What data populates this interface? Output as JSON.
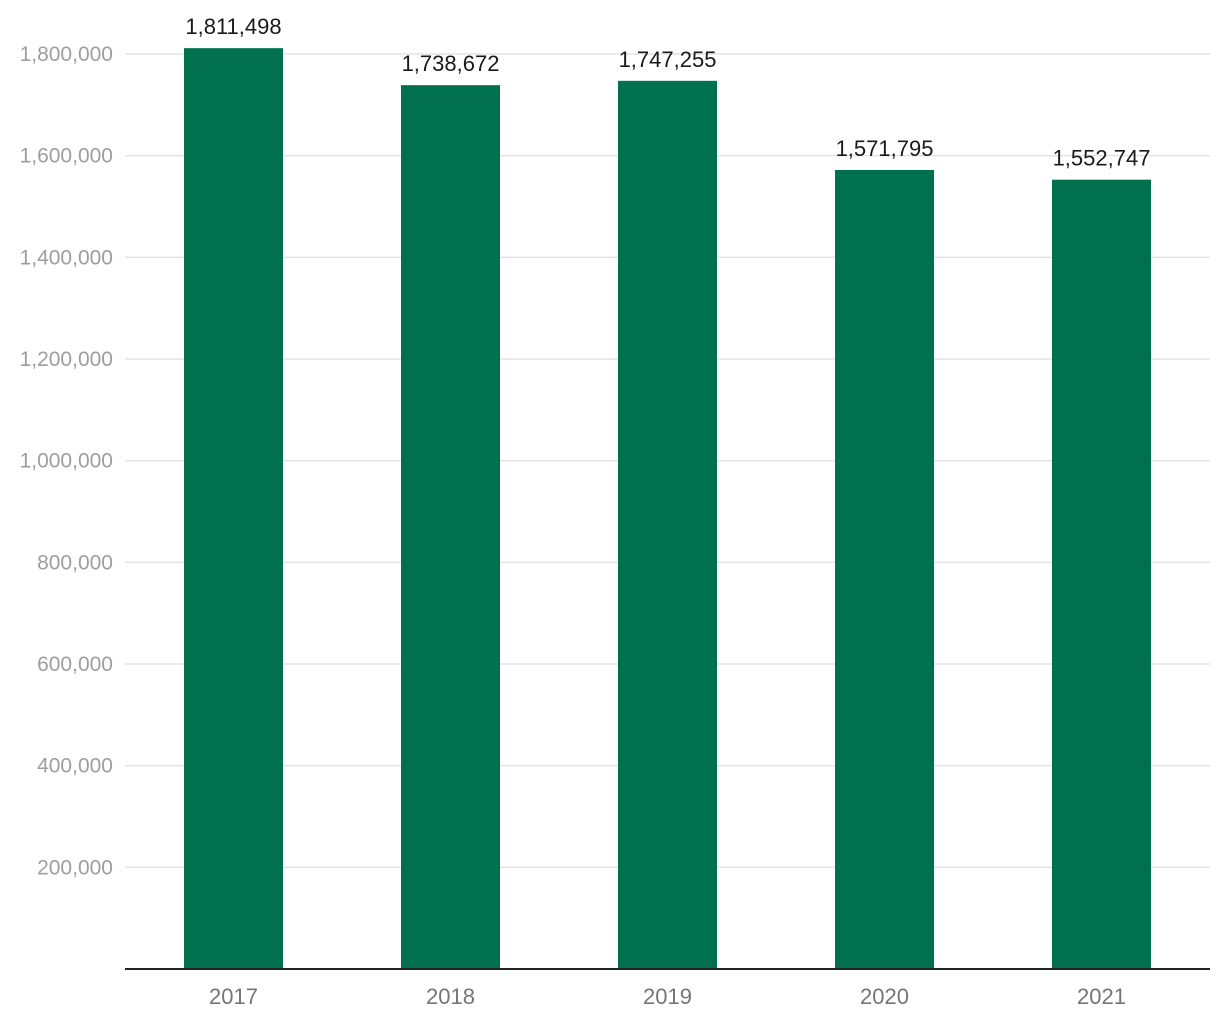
{
  "chart_data": {
    "type": "bar",
    "categories": [
      "2017",
      "2018",
      "2019",
      "2020",
      "2021"
    ],
    "values": [
      1811498,
      1738672,
      1747255,
      1571795,
      1552747
    ],
    "data_labels": [
      "1,811,498",
      "1,738,672",
      "1,747,255",
      "1,571,795",
      "1,552,747"
    ],
    "title": "",
    "xlabel": "",
    "ylabel": "",
    "ylim": [
      0,
      1800000
    ],
    "y_ticks": [
      200000,
      400000,
      600000,
      800000,
      1000000,
      1200000,
      1400000,
      1600000,
      1800000
    ],
    "y_tick_labels": [
      "200,000",
      "400,000",
      "600,000",
      "800,000",
      "1,000,000",
      "1,200,000",
      "1,400,000",
      "1,600,000",
      "1,800,000"
    ],
    "grid": true,
    "legend": "none",
    "bar_color": "#00704f"
  }
}
